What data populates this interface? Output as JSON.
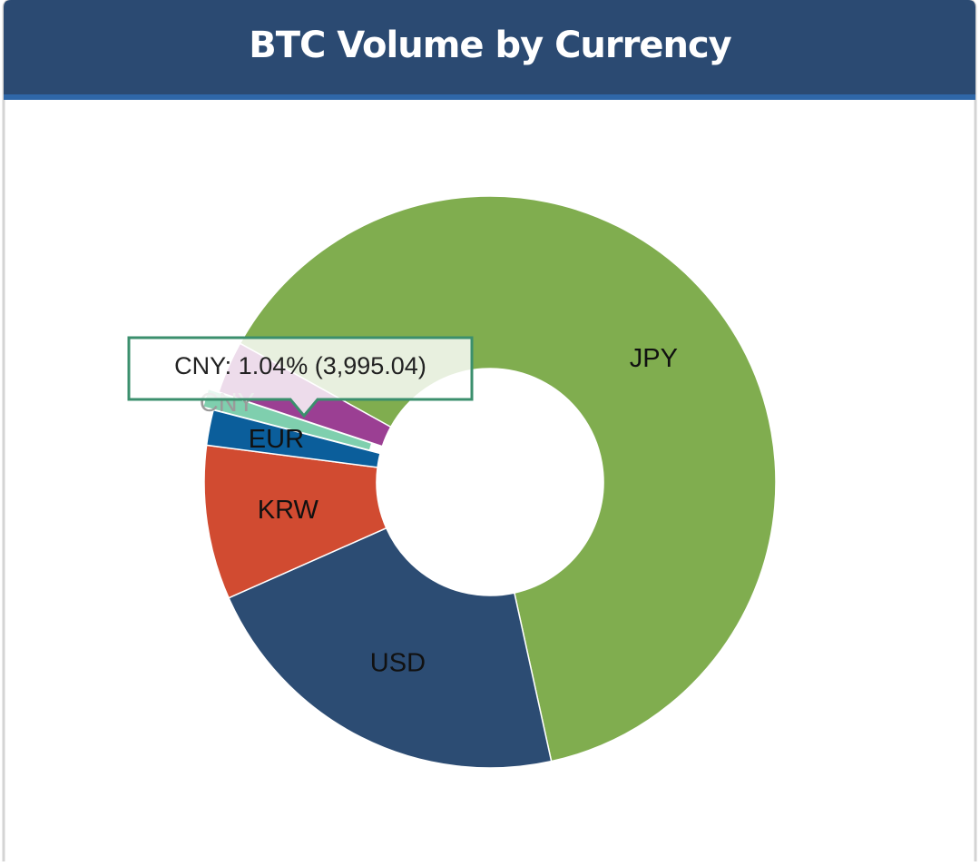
{
  "chart_data": {
    "type": "pie",
    "title": "BTC Volume by Currency",
    "categories": [
      "JPY",
      "USD",
      "KRW",
      "EUR",
      "CNY",
      null
    ],
    "values": [
      63.5,
      21.8,
      8.7,
      2.0,
      1.04,
      2.96
    ],
    "colors": [
      "#80ad4f",
      "#2c4c73",
      "#d14b31",
      "#0b5e9b",
      "#7fcfae",
      "#9b3f93"
    ],
    "tooltip": "CNY: 1.04% (3,995.04)"
  }
}
